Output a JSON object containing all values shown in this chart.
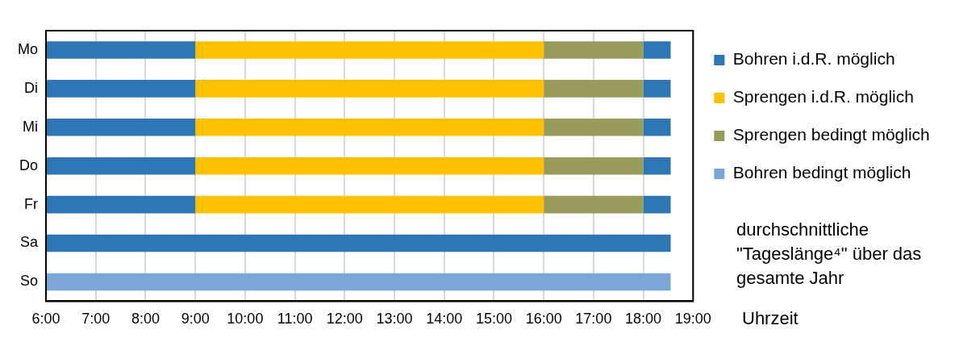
{
  "chart_data": {
    "type": "bar",
    "orientation": "horizontal",
    "xlabel": "Uhrzeit",
    "categories": [
      "Mo",
      "Di",
      "Mi",
      "Do",
      "Fr",
      "Sa",
      "So"
    ],
    "series": [
      {
        "name": "Bohren i.d.R. möglich",
        "color": "#2e75b6",
        "base": [
          6,
          6,
          6,
          6,
          6,
          6,
          null
        ],
        "values": [
          3,
          3,
          3,
          3,
          3,
          12.55,
          null
        ]
      },
      {
        "name": "Sprengen i.d.R. möglich",
        "color": "#ffc000",
        "base": [
          9,
          9,
          9,
          9,
          9,
          null,
          null
        ],
        "values": [
          7,
          7,
          7,
          7,
          7,
          null,
          null
        ]
      },
      {
        "name": "Sprengen bedingt möglich",
        "color": "#979b5b",
        "base": [
          16,
          16,
          16,
          16,
          16,
          null,
          null
        ],
        "values": [
          2,
          2,
          2,
          2,
          2,
          null,
          null
        ]
      },
      {
        "name": "Bohren bedingt möglich",
        "color": "#7aa7d6",
        "base": [
          null,
          null,
          null,
          null,
          null,
          null,
          6
        ],
        "values": [
          null,
          null,
          null,
          null,
          null,
          null,
          12.55
        ]
      },
      {
        "color": "#2e75b6",
        "base": [
          18,
          18,
          18,
          18,
          18,
          null,
          null
        ],
        "values": [
          0.55,
          0.55,
          0.55,
          0.55,
          0.55,
          null,
          null
        ]
      }
    ],
    "xlim": [
      6,
      19
    ],
    "xticks": [
      {
        "value": 6,
        "label": "6:00"
      },
      {
        "value": 7,
        "label": "7:00"
      },
      {
        "value": 8,
        "label": "8:00"
      },
      {
        "value": 9,
        "label": "9:00"
      },
      {
        "value": 10,
        "label": "10:00"
      },
      {
        "value": 11,
        "label": "11:00"
      },
      {
        "value": 12,
        "label": "12:00"
      },
      {
        "value": 13,
        "label": "13:00"
      },
      {
        "value": 14,
        "label": "14:00"
      },
      {
        "value": 15,
        "label": "15:00"
      },
      {
        "value": 16,
        "label": "16:00"
      },
      {
        "value": 17,
        "label": "17:00"
      },
      {
        "value": 18,
        "label": "18:00"
      },
      {
        "value": 19,
        "label": "19:00"
      }
    ],
    "grid": "x",
    "legend": "right",
    "annotations": [
      "durchschnittliche \"Tageslänge⁴\" über das gesamte Jahr"
    ]
  }
}
